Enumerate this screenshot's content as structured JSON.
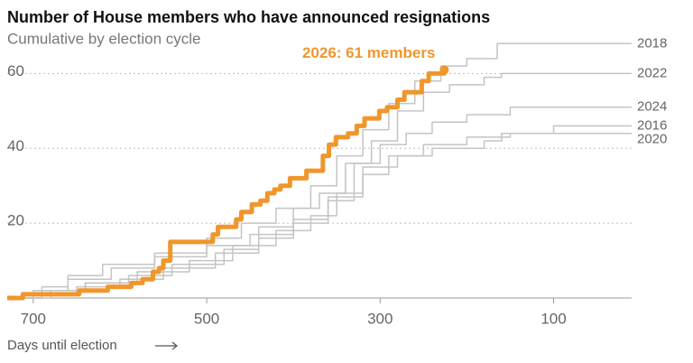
{
  "chart_data": {
    "type": "step-line",
    "title": "Number of House members who have announced resignations",
    "subtitle": "Cumulative by election cycle",
    "x_label": "Days until election",
    "annotation": "2026: 61 members",
    "xlim": [
      730,
      10
    ],
    "ylim": [
      0,
      70
    ],
    "xticks": [
      700,
      500,
      300,
      100
    ],
    "yticks": [
      20,
      40,
      60
    ],
    "grid": true,
    "series": [
      {
        "name": "2018",
        "color": "#c4c4c4",
        "x": [
          730,
          690,
          660,
          620,
          560,
          500,
          460,
          420,
          380,
          350,
          320,
          290,
          260,
          230,
          200,
          165,
          10
        ],
        "values": [
          0,
          3,
          6,
          9,
          12,
          16,
          20,
          24,
          30,
          38,
          45,
          52,
          58,
          62,
          64,
          68,
          68
        ]
      },
      {
        "name": "2022",
        "color": "#c4c4c4",
        "x": [
          730,
          680,
          640,
          590,
          540,
          480,
          440,
          400,
          370,
          340,
          310,
          280,
          250,
          220,
          180,
          160,
          10
        ],
        "values": [
          0,
          2,
          4,
          6,
          9,
          13,
          19,
          24,
          28,
          36,
          42,
          50,
          55,
          57,
          59,
          60,
          60
        ]
      },
      {
        "name": "2024",
        "color": "#c4c4c4",
        "x": [
          730,
          700,
          650,
          600,
          550,
          490,
          440,
          400,
          360,
          330,
          300,
          270,
          240,
          200,
          150,
          10
        ],
        "values": [
          0,
          1,
          3,
          5,
          8,
          12,
          16,
          20,
          26,
          36,
          41,
          44,
          47,
          49,
          51,
          51
        ]
      },
      {
        "name": "2016",
        "color": "#c4c4c4",
        "x": [
          730,
          690,
          640,
          580,
          520,
          470,
          420,
          380,
          350,
          320,
          290,
          250,
          200,
          150,
          100,
          10
        ],
        "values": [
          0,
          2,
          4,
          7,
          10,
          14,
          18,
          22,
          28,
          33,
          38,
          41,
          43,
          44,
          46,
          46
        ]
      },
      {
        "name": "2020",
        "color": "#c4c4c4",
        "x": [
          730,
          700,
          660,
          610,
          560,
          500,
          450,
          400,
          360,
          320,
          280,
          240,
          180,
          160,
          10
        ],
        "values": [
          0,
          2,
          5,
          8,
          11,
          14,
          17,
          21,
          27,
          35,
          38,
          40,
          42,
          44,
          44
        ]
      },
      {
        "color": "#f0962b",
        "x": [
          730,
          712,
          647,
          614,
          587,
          574,
          562,
          555,
          550,
          542,
          493,
          487,
          466,
          460,
          448,
          438,
          430,
          422,
          415,
          404,
          385,
          366,
          359,
          351,
          337,
          327,
          318,
          301,
          292,
          280,
          272,
          252,
          244,
          226
        ],
        "values": [
          0,
          1,
          2,
          3,
          4,
          5,
          7,
          8,
          10,
          15,
          17,
          19,
          21,
          23,
          25,
          26,
          28,
          29,
          30,
          32,
          34,
          38,
          41,
          43,
          44,
          46,
          48,
          50,
          51,
          53,
          55,
          58,
          60,
          61
        ]
      }
    ]
  }
}
